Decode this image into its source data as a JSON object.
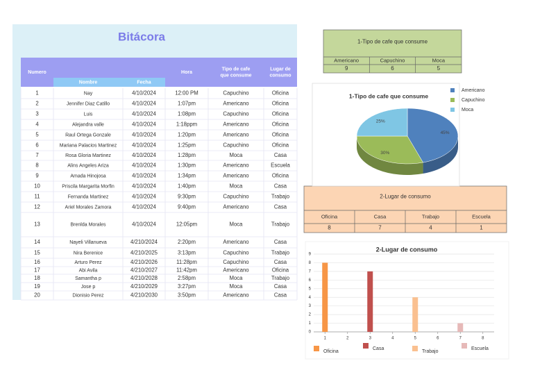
{
  "sheet": {
    "title": "Bitácora",
    "headers": [
      "Numero",
      "Nombre",
      "Fecha",
      "Hora",
      "Tipo de cafe que consume",
      "Lugar de consumo"
    ],
    "rows": [
      [
        1,
        "Nay",
        "4/10/2024",
        "12:00 PM",
        "Capuchino",
        "Oficina"
      ],
      [
        2,
        "Jennifer Diaz Catillo",
        "4/10/2024",
        "1:07pm",
        "Americano",
        "Oficina"
      ],
      [
        3,
        "Luis",
        "4/10/2024",
        "1:08pm",
        "Capuchino",
        "Oficina"
      ],
      [
        4,
        "Alejandra valle",
        "4/10/2024",
        "1:18ppm",
        "Americano",
        "Oficina"
      ],
      [
        5,
        "Raul Ortega Gonzale",
        "4/10/2024",
        "1:20pm",
        "Americano",
        "Oficina"
      ],
      [
        6,
        "Mariana Palacios Martinez",
        "4/10/2024",
        "1:25pm",
        "Capuchino",
        "Oficina"
      ],
      [
        7,
        "Rosa Gloria Martinez",
        "4/10/2024",
        "1:28pm",
        "Moca",
        "Casa"
      ],
      [
        8,
        "Alins Angeles Ariza",
        "4/10/2024",
        "1:30pm",
        "Americano",
        "Escuela"
      ],
      [
        9,
        "Amada Hinojosa",
        "4/10/2024",
        "1:34pm",
        "Americano",
        "Oficina"
      ],
      [
        10,
        "Priscila Margarita Morfin",
        "4/10/2024",
        "1:40pm",
        "Moca",
        "Casa"
      ],
      [
        11,
        "Fernanda Martinez",
        "4/10/2024",
        "9:30pm",
        "Capuchino",
        "Trabajo"
      ],
      [
        12,
        "Ariel Morales Zamora",
        "4/10/2024",
        "9:40pm",
        "Americano",
        "Casa"
      ],
      [
        13,
        "Brenlda Morales",
        "4/10/2024",
        "12:05pm",
        "Moca",
        "Trabajo"
      ],
      [
        14,
        "Nayeli Villanueva",
        "4/210/2024",
        "2:20pm",
        "Americano",
        "Casa"
      ],
      [
        15,
        "Nira Berenice",
        "4/210/2025",
        "3:13pm",
        "Capuchino",
        "Trabajo"
      ],
      [
        16,
        "Arturo Perez",
        "4/210/2026",
        "11:28pm",
        "Capuchino",
        "Casa"
      ],
      [
        17,
        "Abi Avila",
        "4/210/2027",
        "11:42pm",
        "Americano",
        "Oficina"
      ],
      [
        18,
        "Samantha p",
        "4/210/2028",
        "2:58pm",
        "Moca",
        "Trabajo"
      ],
      [
        19,
        "Jose p",
        "4/210/2029",
        "3:27pm",
        "Moca",
        "Casa"
      ],
      [
        20,
        "Dionisio Perez",
        "4/210/2030",
        "3:50pm",
        "Americano",
        "Casa"
      ]
    ]
  },
  "summary_tables": [
    {
      "title": "1-Tipo de cafe que consume",
      "headers": [
        "Americano",
        "Capuchino",
        "Moca"
      ],
      "values": [
        9,
        6,
        5
      ],
      "color": "#c4d79b"
    },
    {
      "title": "2-Lugar de consumo",
      "headers": [
        "Oficina",
        "Casa",
        "Trabajo",
        "Escuela"
      ],
      "values": [
        8,
        7,
        4,
        1
      ],
      "color": "#fcd5b4"
    }
  ],
  "chart_data": [
    {
      "type": "pie",
      "title": "1-Tipo de cafe que consume",
      "categories": [
        "Americano",
        "Capuchino",
        "Moca"
      ],
      "values": [
        45,
        30,
        25
      ],
      "value_labels": [
        "45%",
        "30%",
        "25%"
      ],
      "colors": [
        "#4f81bd",
        "#9bbb59",
        "#7fc6e4"
      ],
      "legend": "right"
    },
    {
      "type": "bar",
      "title": "2-Lugar de consumo",
      "series": [
        {
          "name": "Oficina",
          "color": "#f79646",
          "x": [
            1
          ],
          "values": [
            8
          ]
        },
        {
          "name": "Casa",
          "color": "#c0504d",
          "x": [
            3
          ],
          "values": [
            7
          ]
        },
        {
          "name": "Trabajo",
          "color": "#fac090",
          "x": [
            5
          ],
          "values": [
            4
          ]
        },
        {
          "name": "Escuela",
          "color": "#e6b9b8",
          "x": [
            7
          ],
          "values": [
            1
          ]
        }
      ],
      "xlim": [
        0.5,
        8.5
      ],
      "xticks": [
        1,
        2,
        3,
        4,
        5,
        6,
        7,
        8
      ],
      "ylim": [
        0,
        9
      ],
      "yticks": [
        0,
        1,
        2,
        3,
        4,
        5,
        6,
        7,
        8,
        9
      ],
      "grid": true,
      "legend": "bottom"
    }
  ]
}
